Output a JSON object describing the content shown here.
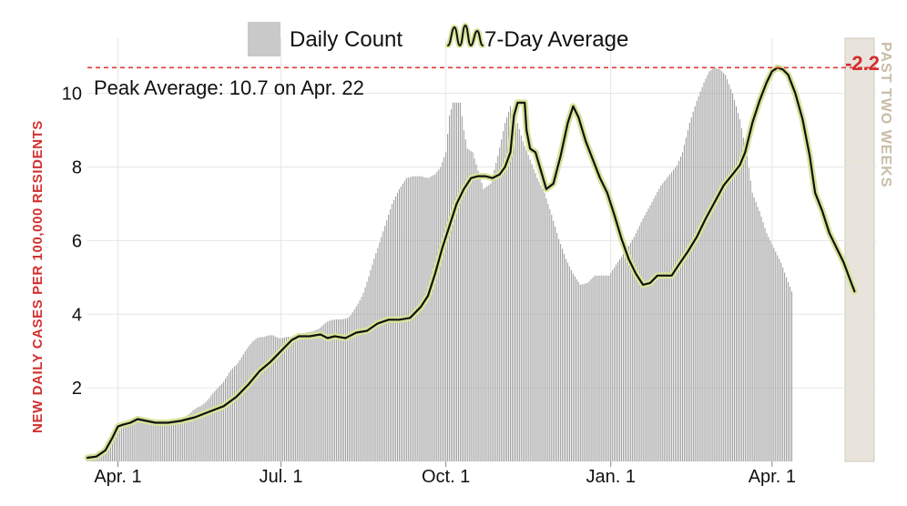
{
  "chart_data": {
    "type": "bar",
    "ylabel": "NEW DAILY CASES PER 100,000 RESIDENTS",
    "ylim": [
      0,
      11.5
    ],
    "yticks": [
      2,
      4,
      6,
      8,
      10
    ],
    "xticks": [
      "Apr. 1",
      "Jul. 1",
      "Oct. 1",
      "Jan. 1",
      "Apr. 1"
    ],
    "xtick_days": [
      17,
      108,
      200,
      292,
      382
    ],
    "x_range_days": [
      0,
      440
    ],
    "grid": true,
    "legend": {
      "placement": "top-center",
      "daily_label": "Daily Count",
      "avg_label": "7-Day Average"
    },
    "peak": {
      "value": 10.7,
      "label": "Peak Average: 10.7 on Apr. 22"
    },
    "change": {
      "value": "-2.2",
      "color": "#d32f2f"
    },
    "past_two_weeks_label": "PAST TWO WEEKS",
    "colors": {
      "bars": "#9e9e9e",
      "avg_line": "#111111",
      "avg_halo": "#d9e39a",
      "peak_line": "#e53935",
      "ylabel": "#d32f2f",
      "shade": "#e8e4dc",
      "shade_text": "#c8bca8"
    },
    "series": [
      {
        "name": "7-Day Average",
        "kind": "line",
        "points": [
          [
            0,
            0.1
          ],
          [
            5,
            0.13
          ],
          [
            10,
            0.3
          ],
          [
            14,
            0.65
          ],
          [
            17,
            0.95
          ],
          [
            20,
            1.0
          ],
          [
            24,
            1.05
          ],
          [
            28,
            1.15
          ],
          [
            33,
            1.1
          ],
          [
            38,
            1.05
          ],
          [
            45,
            1.05
          ],
          [
            52,
            1.1
          ],
          [
            60,
            1.2
          ],
          [
            68,
            1.35
          ],
          [
            76,
            1.5
          ],
          [
            83,
            1.75
          ],
          [
            90,
            2.1
          ],
          [
            96,
            2.45
          ],
          [
            102,
            2.7
          ],
          [
            108,
            3.0
          ],
          [
            114,
            3.3
          ],
          [
            118,
            3.4
          ],
          [
            124,
            3.4
          ],
          [
            130,
            3.45
          ],
          [
            134,
            3.35
          ],
          [
            138,
            3.4
          ],
          [
            144,
            3.35
          ],
          [
            150,
            3.5
          ],
          [
            156,
            3.55
          ],
          [
            162,
            3.75
          ],
          [
            168,
            3.85
          ],
          [
            174,
            3.85
          ],
          [
            180,
            3.9
          ],
          [
            186,
            4.2
          ],
          [
            190,
            4.5
          ],
          [
            194,
            5.1
          ],
          [
            198,
            5.8
          ],
          [
            202,
            6.4
          ],
          [
            206,
            7.0
          ],
          [
            210,
            7.4
          ],
          [
            214,
            7.7
          ],
          [
            218,
            7.75
          ],
          [
            222,
            7.75
          ],
          [
            226,
            7.7
          ],
          [
            230,
            7.8
          ],
          [
            233,
            8.0
          ],
          [
            236,
            8.4
          ],
          [
            238,
            9.4
          ],
          [
            240,
            9.75
          ],
          [
            244,
            9.75
          ],
          [
            245,
            9.0
          ],
          [
            247,
            8.5
          ],
          [
            250,
            8.4
          ],
          [
            253,
            7.9
          ],
          [
            256,
            7.4
          ],
          [
            260,
            7.55
          ],
          [
            264,
            8.3
          ],
          [
            268,
            9.2
          ],
          [
            271,
            9.65
          ],
          [
            274,
            9.35
          ],
          [
            278,
            8.7
          ],
          [
            282,
            8.2
          ],
          [
            286,
            7.7
          ],
          [
            290,
            7.3
          ],
          [
            294,
            6.7
          ],
          [
            298,
            6.05
          ],
          [
            302,
            5.5
          ],
          [
            306,
            5.1
          ],
          [
            310,
            4.8
          ],
          [
            314,
            4.85
          ],
          [
            318,
            5.05
          ],
          [
            322,
            5.05
          ],
          [
            326,
            5.05
          ],
          [
            330,
            5.35
          ],
          [
            335,
            5.7
          ],
          [
            340,
            6.1
          ],
          [
            345,
            6.6
          ],
          [
            350,
            7.05
          ],
          [
            355,
            7.5
          ],
          [
            360,
            7.8
          ],
          [
            364,
            8.05
          ],
          [
            367,
            8.4
          ],
          [
            371,
            9.2
          ],
          [
            375,
            9.8
          ],
          [
            379,
            10.3
          ],
          [
            382,
            10.6
          ],
          [
            385,
            10.7
          ],
          [
            388,
            10.65
          ],
          [
            391,
            10.5
          ],
          [
            395,
            10.0
          ],
          [
            399,
            9.3
          ],
          [
            403,
            8.3
          ],
          [
            406,
            7.3
          ],
          [
            410,
            6.8
          ],
          [
            414,
            6.2
          ],
          [
            418,
            5.8
          ],
          [
            422,
            5.4
          ],
          [
            425,
            5.0
          ],
          [
            428,
            4.62
          ]
        ]
      },
      {
        "name": "Daily Count",
        "kind": "bars",
        "values": [
          0.1,
          0.1,
          0.11,
          0.12,
          0.12,
          0.13,
          0.15,
          0.16,
          0.23,
          0.25,
          0.3,
          0.37,
          0.43,
          0.49,
          0.56,
          0.62,
          0.7,
          0.77,
          0.84,
          0.9,
          0.96,
          1.01,
          1.01,
          1.03,
          1.04,
          1.07,
          1.1,
          1.12,
          1.14,
          1.15,
          1.14,
          1.14,
          1.12,
          1.11,
          1.1,
          1.09,
          1.08,
          1.07,
          1.06,
          1.05,
          1.05,
          1.05,
          1.06,
          1.06,
          1.07,
          1.07,
          1.08,
          1.09,
          1.09,
          1.11,
          1.13,
          1.15,
          1.17,
          1.19,
          1.21,
          1.23,
          1.26,
          1.3,
          1.34,
          1.39,
          1.42,
          1.46,
          1.48,
          1.5,
          1.53,
          1.57,
          1.61,
          1.66,
          1.72,
          1.79,
          1.85,
          1.91,
          1.96,
          2.01,
          2.06,
          2.11,
          2.17,
          2.25,
          2.32,
          2.41,
          2.48,
          2.53,
          2.58,
          2.62,
          2.68,
          2.75,
          2.83,
          2.91,
          2.99,
          3.06,
          3.13,
          3.19,
          3.25,
          3.29,
          3.33,
          3.36,
          3.37,
          3.38,
          3.38,
          3.39,
          3.41,
          3.42,
          3.43,
          3.43,
          3.42,
          3.39,
          3.37,
          3.35,
          3.34,
          3.36,
          3.37,
          3.38,
          3.39,
          3.38,
          3.36,
          3.34,
          3.35,
          3.38,
          3.41,
          3.44,
          3.46,
          3.49,
          3.5,
          3.51,
          3.52,
          3.53,
          3.54,
          3.56,
          3.58,
          3.6,
          3.64,
          3.68,
          3.73,
          3.77,
          3.8,
          3.82,
          3.83,
          3.85,
          3.85,
          3.86,
          3.86,
          3.86,
          3.86,
          3.87,
          3.88,
          3.89,
          3.93,
          3.98,
          4.05,
          4.13,
          4.21,
          4.29,
          4.38,
          4.47,
          4.58,
          4.73,
          4.88,
          5.03,
          5.2,
          5.35,
          5.51,
          5.66,
          5.8,
          5.95,
          6.1,
          6.25,
          6.4,
          6.55,
          6.7,
          6.85,
          7.0,
          7.1,
          7.2,
          7.3,
          7.4,
          7.47,
          7.55,
          7.62,
          7.7,
          7.71,
          7.72,
          7.74,
          7.75,
          7.75,
          7.75,
          7.75,
          7.75,
          7.74,
          7.72,
          7.71,
          7.7,
          7.72,
          7.75,
          7.78,
          7.8,
          7.87,
          7.93,
          8.0,
          8.13,
          8.27,
          8.4,
          8.9,
          9.4,
          9.57,
          9.75,
          9.75,
          9.75,
          9.75,
          9.75,
          9.38,
          9.0,
          8.75,
          8.5,
          8.47,
          8.43,
          8.4,
          8.23,
          8.07,
          7.9,
          7.73,
          7.57,
          7.4,
          7.44,
          7.48,
          7.51,
          7.55,
          7.74,
          7.92,
          8.11,
          8.3,
          8.53,
          8.75,
          8.98,
          9.2,
          9.35,
          9.5,
          9.65,
          9.55,
          9.45,
          9.35,
          9.19,
          9.03,
          8.86,
          8.7,
          8.57,
          8.45,
          8.33,
          8.2,
          8.08,
          7.95,
          7.83,
          7.7,
          7.6,
          7.5,
          7.4,
          7.3,
          7.15,
          7.0,
          6.85,
          6.7,
          6.54,
          6.38,
          6.21,
          6.05,
          5.91,
          5.78,
          5.64,
          5.5,
          5.4,
          5.3,
          5.2,
          5.1,
          5.03,
          4.95,
          4.88,
          4.8,
          4.81,
          4.82,
          4.84,
          4.85,
          4.9,
          4.95,
          5.0,
          5.05,
          5.05,
          5.05,
          5.05,
          5.05,
          5.05,
          5.05,
          5.05,
          5.05,
          5.12,
          5.2,
          5.27,
          5.35,
          5.42,
          5.49,
          5.56,
          5.63,
          5.7,
          5.78,
          5.86,
          5.94,
          6.02,
          6.1,
          6.2,
          6.3,
          6.4,
          6.5,
          6.6,
          6.69,
          6.78,
          6.87,
          6.96,
          7.05,
          7.14,
          7.23,
          7.32,
          7.41,
          7.5,
          7.56,
          7.62,
          7.68,
          7.74,
          7.8,
          7.86,
          7.93,
          7.99,
          8.05,
          8.17,
          8.28,
          8.4,
          8.6,
          8.8,
          9.0,
          9.2,
          9.35,
          9.5,
          9.65,
          9.8,
          9.92,
          10.05,
          10.17,
          10.3,
          10.4,
          10.5,
          10.6,
          10.63,
          10.67,
          10.7,
          10.68,
          10.67,
          10.65,
          10.6,
          10.55,
          10.5,
          10.38,
          10.25,
          10.12,
          10.0,
          9.82,
          9.65,
          9.47,
          9.3,
          9.05,
          8.8,
          8.55,
          8.3,
          7.97,
          7.63,
          7.3,
          7.17,
          7.05,
          6.92,
          6.8,
          6.65,
          6.5,
          6.35,
          6.2,
          6.1,
          6.0,
          5.9,
          5.8,
          5.7,
          5.6,
          5.5,
          5.4,
          5.27,
          5.13,
          5.0,
          4.87,
          4.75,
          4.62
        ]
      }
    ]
  }
}
